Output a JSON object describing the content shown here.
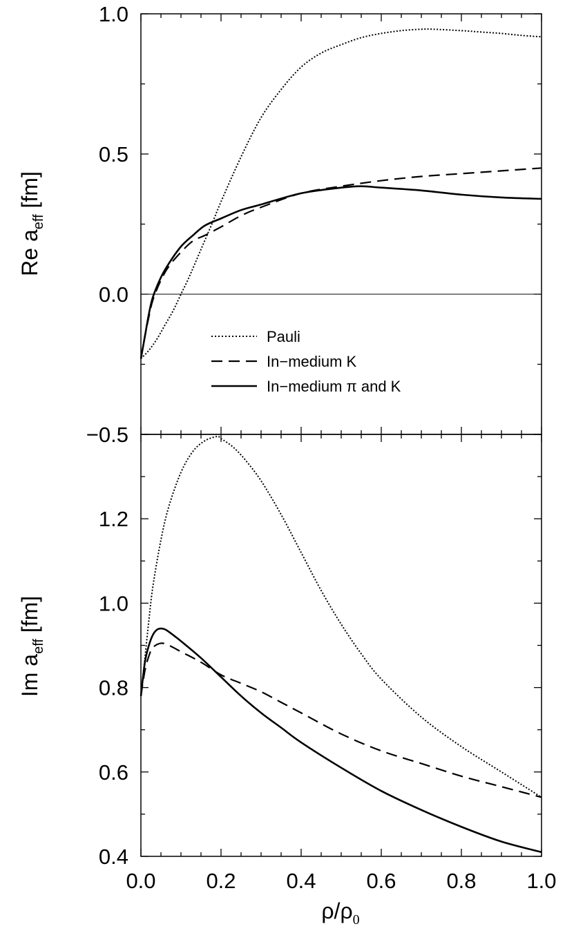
{
  "chart_data": [
    {
      "type": "line",
      "panel": "top",
      "ylabel_main": "Re a",
      "ylabel_sub": "eff",
      "ylabel_unit": " [fm]",
      "xlim": [
        0.0,
        1.0
      ],
      "ylim": [
        -0.5,
        1.0
      ],
      "yticks": [
        "−0.5",
        "0.0",
        "0.5",
        "1.0"
      ],
      "zero_line": true,
      "legend": {
        "position": "lower-left",
        "entries": [
          {
            "label": "Pauli",
            "style": "dotted"
          },
          {
            "label": "In−medium K",
            "style": "dashed"
          },
          {
            "label": "In−medium π and K",
            "style": "solid"
          }
        ]
      },
      "series": [
        {
          "name": "Pauli",
          "style": "dotted",
          "x": [
            0.0,
            0.02,
            0.04,
            0.06,
            0.08,
            0.1,
            0.12,
            0.15,
            0.18,
            0.2,
            0.25,
            0.3,
            0.35,
            0.4,
            0.45,
            0.5,
            0.55,
            0.6,
            0.65,
            0.7,
            0.73,
            0.8,
            0.85,
            0.9,
            0.95,
            1.0
          ],
          "y": [
            -0.23,
            -0.2,
            -0.16,
            -0.11,
            -0.06,
            0.0,
            0.06,
            0.16,
            0.26,
            0.33,
            0.49,
            0.63,
            0.73,
            0.81,
            0.86,
            0.89,
            0.915,
            0.93,
            0.94,
            0.945,
            0.945,
            0.94,
            0.935,
            0.93,
            0.923,
            0.918
          ]
        },
        {
          "name": "In−medium K",
          "style": "dashed",
          "x": [
            0.0,
            0.01,
            0.02,
            0.03,
            0.05,
            0.07,
            0.1,
            0.13,
            0.16,
            0.2,
            0.25,
            0.3,
            0.4,
            0.5,
            0.6,
            0.7,
            0.8,
            0.9,
            1.0
          ],
          "y": [
            -0.23,
            -0.15,
            -0.08,
            -0.02,
            0.05,
            0.1,
            0.15,
            0.19,
            0.21,
            0.24,
            0.28,
            0.31,
            0.36,
            0.385,
            0.405,
            0.42,
            0.43,
            0.44,
            0.45
          ]
        },
        {
          "name": "In−medium π and K",
          "style": "solid",
          "x": [
            0.0,
            0.01,
            0.02,
            0.03,
            0.05,
            0.07,
            0.1,
            0.13,
            0.16,
            0.2,
            0.25,
            0.3,
            0.4,
            0.5,
            0.55,
            0.6,
            0.7,
            0.8,
            0.9,
            1.0
          ],
          "y": [
            -0.23,
            -0.15,
            -0.07,
            -0.01,
            0.06,
            0.11,
            0.17,
            0.21,
            0.245,
            0.27,
            0.3,
            0.32,
            0.36,
            0.38,
            0.385,
            0.38,
            0.37,
            0.355,
            0.345,
            0.34
          ]
        }
      ]
    },
    {
      "type": "line",
      "panel": "bottom",
      "ylabel_main": "Im a",
      "ylabel_sub": "eff",
      "ylabel_unit": " [fm]",
      "xlabel_main": "ρ/ρ",
      "xlabel_sub": "0",
      "xlim": [
        0.0,
        1.0
      ],
      "ylim": [
        0.4,
        1.4
      ],
      "yticks": [
        "0.4",
        "0.6",
        "0.8",
        "1.0",
        "1.2"
      ],
      "xticks": [
        "0.0",
        "0.2",
        "0.4",
        "0.6",
        "0.8",
        "1.0"
      ],
      "series": [
        {
          "name": "Pauli",
          "style": "dotted",
          "x": [
            0.0,
            0.01,
            0.02,
            0.03,
            0.05,
            0.07,
            0.1,
            0.13,
            0.16,
            0.19,
            0.2,
            0.23,
            0.26,
            0.3,
            0.35,
            0.4,
            0.45,
            0.5,
            0.55,
            0.6,
            0.7,
            0.8,
            0.9,
            1.0
          ],
          "y": [
            0.78,
            0.87,
            0.96,
            1.04,
            1.15,
            1.23,
            1.31,
            1.36,
            1.385,
            1.395,
            1.39,
            1.37,
            1.34,
            1.29,
            1.21,
            1.12,
            1.03,
            0.95,
            0.88,
            0.82,
            0.73,
            0.66,
            0.6,
            0.54
          ]
        },
        {
          "name": "In−medium K",
          "style": "dashed",
          "x": [
            0.0,
            0.01,
            0.02,
            0.03,
            0.05,
            0.07,
            0.1,
            0.15,
            0.2,
            0.25,
            0.3,
            0.35,
            0.4,
            0.5,
            0.6,
            0.7,
            0.8,
            0.9,
            1.0
          ],
          "y": [
            0.78,
            0.84,
            0.875,
            0.895,
            0.905,
            0.9,
            0.885,
            0.86,
            0.83,
            0.81,
            0.79,
            0.765,
            0.74,
            0.69,
            0.65,
            0.62,
            0.59,
            0.565,
            0.54
          ]
        },
        {
          "name": "In−medium π and K",
          "style": "solid",
          "x": [
            0.0,
            0.01,
            0.02,
            0.03,
            0.04,
            0.05,
            0.06,
            0.07,
            0.1,
            0.15,
            0.2,
            0.25,
            0.3,
            0.35,
            0.4,
            0.5,
            0.6,
            0.7,
            0.8,
            0.9,
            1.0
          ],
          "y": [
            0.78,
            0.86,
            0.9,
            0.925,
            0.937,
            0.94,
            0.938,
            0.932,
            0.91,
            0.87,
            0.825,
            0.78,
            0.74,
            0.705,
            0.67,
            0.61,
            0.555,
            0.51,
            0.47,
            0.435,
            0.41
          ]
        }
      ]
    }
  ]
}
